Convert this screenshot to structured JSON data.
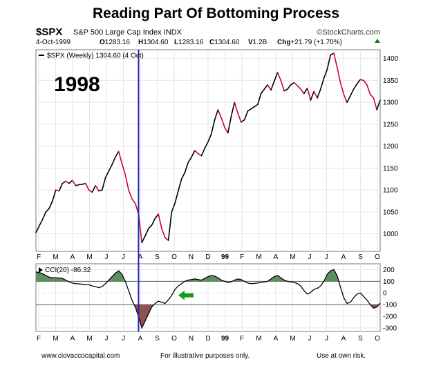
{
  "page_title": "Reading Part Of Bottoming Process",
  "header": {
    "symbol": "$SPX",
    "name": "S&P 500 Large Cap Index",
    "exchange": "INDX",
    "watermark": "©StockCharts.com",
    "date": "4-Oct-1999",
    "open_label": "O",
    "open": "1283.16",
    "high_label": "H",
    "high": "1304.60",
    "low_label": "L",
    "low": "1283.16",
    "close_label": "C",
    "close": "1304.60",
    "volume_label": "V",
    "volume": "1.2B",
    "change_label": "Chg",
    "change": "+21.79 (+1.70%)"
  },
  "chart_data": [
    {
      "type": "line",
      "legend": "$SPX (Weekly) 1304.60 (4 Oct)",
      "annotation": "1998",
      "y_ticks": [
        1000,
        1050,
        1100,
        1150,
        1200,
        1250,
        1300,
        1350,
        1400
      ],
      "ylim": [
        960,
        1420
      ],
      "x_ticks": [
        "F",
        "M",
        "A",
        "M",
        "J",
        "J",
        "A",
        "S",
        "O",
        "N",
        "D",
        "99",
        "F",
        "M",
        "A",
        "M",
        "J",
        "J",
        "A",
        "S",
        "O"
      ],
      "colors": {
        "up": "#000000",
        "down": "#cc0033",
        "marker": "#2222bb"
      },
      "marker_index": 31,
      "values": [
        1003,
        1018,
        1033,
        1050,
        1058,
        1075,
        1100,
        1098,
        1115,
        1120,
        1115,
        1122,
        1110,
        1112,
        1113,
        1115,
        1100,
        1095,
        1110,
        1098,
        1100,
        1128,
        1143,
        1158,
        1175,
        1188,
        1160,
        1135,
        1100,
        1080,
        1070,
        1045,
        980,
        995,
        1012,
        1020,
        1035,
        1045,
        1012,
        992,
        985,
        1050,
        1070,
        1098,
        1125,
        1140,
        1163,
        1175,
        1190,
        1183,
        1178,
        1195,
        1210,
        1228,
        1260,
        1283,
        1265,
        1243,
        1230,
        1268,
        1300,
        1275,
        1255,
        1260,
        1280,
        1285,
        1290,
        1295,
        1320,
        1330,
        1340,
        1328,
        1348,
        1368,
        1350,
        1326,
        1330,
        1340,
        1345,
        1338,
        1330,
        1320,
        1332,
        1305,
        1325,
        1310,
        1330,
        1355,
        1375,
        1408,
        1412,
        1380,
        1345,
        1318,
        1300,
        1315,
        1330,
        1342,
        1352,
        1350,
        1340,
        1318,
        1310,
        1283,
        1305
      ]
    },
    {
      "type": "area",
      "legend": "CCI(20) -86.32",
      "y_ticks": [
        -300,
        -200,
        -100,
        0,
        100,
        200
      ],
      "ylim": [
        -330,
        250
      ],
      "x_ticks": [
        "F",
        "M",
        "A",
        "M",
        "J",
        "J",
        "A",
        "S",
        "O",
        "N",
        "D",
        "99",
        "F",
        "M",
        "A",
        "M",
        "J",
        "J",
        "A",
        "S",
        "O"
      ],
      "colors": {
        "positive": "#5e8f5e",
        "negative": "#8f5050",
        "line": "#000000",
        "arrow": "#1a9a1a"
      },
      "values": [
        180,
        175,
        165,
        150,
        135,
        130,
        130,
        128,
        125,
        110,
        95,
        85,
        80,
        78,
        75,
        72,
        70,
        60,
        55,
        45,
        55,
        80,
        110,
        140,
        170,
        190,
        160,
        100,
        20,
        -60,
        -120,
        -200,
        -300,
        -240,
        -180,
        -120,
        -90,
        -70,
        -80,
        -90,
        -60,
        -20,
        30,
        60,
        80,
        100,
        110,
        115,
        120,
        115,
        110,
        125,
        140,
        150,
        145,
        130,
        110,
        100,
        90,
        95,
        110,
        120,
        115,
        100,
        85,
        80,
        82,
        85,
        90,
        95,
        100,
        120,
        140,
        150,
        130,
        110,
        100,
        95,
        90,
        80,
        60,
        20,
        -10,
        5,
        30,
        40,
        60,
        100,
        160,
        190,
        200,
        150,
        50,
        -40,
        -90,
        -80,
        -40,
        -10,
        0,
        -30,
        -60,
        -100,
        -130,
        -120,
        -86
      ]
    }
  ],
  "footer": {
    "left": "www.ciovaccocapital.com",
    "center": "For illustrative purposes only.",
    "right": "Use at own risk."
  }
}
